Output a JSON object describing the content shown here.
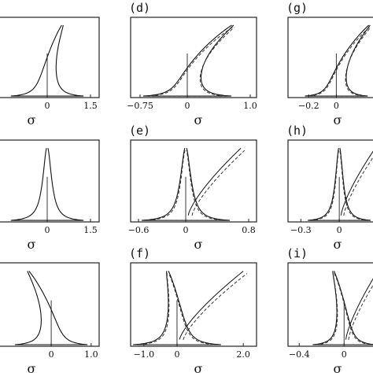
{
  "chart_data": [
    {
      "id": "a",
      "label": "",
      "type": "line",
      "xlabel": "σ",
      "xticks": [
        {
          "value": 0,
          "text": "0"
        },
        {
          "value": 1.5,
          "text": "1.5"
        }
      ],
      "xlim": [
        -1.8,
        1.8
      ],
      "ylim": [
        0,
        1
      ],
      "shape": {
        "peak_x": 0.55,
        "lean": 0.55,
        "base": 0.0,
        "dashed": false
      }
    },
    {
      "id": "b",
      "label": "",
      "type": "line",
      "xlabel": "σ",
      "xticks": [
        {
          "value": 0,
          "text": "0"
        },
        {
          "value": 1.5,
          "text": "1.5"
        }
      ],
      "xlim": [
        -1.8,
        1.8
      ],
      "ylim": [
        0,
        1
      ],
      "shape": {
        "peak_x": 0.0,
        "lean": 0.0,
        "base": 0.0,
        "dashed": false
      }
    },
    {
      "id": "c",
      "label": "",
      "type": "line",
      "xlabel": "σ",
      "xticks": [
        {
          "value": 0,
          "text": "0"
        },
        {
          "value": 1.0,
          "text": "1.0"
        }
      ],
      "xlim": [
        -1.4,
        1.2
      ],
      "ylim": [
        0,
        1
      ],
      "shape": {
        "peak_x": -0.7,
        "lean": -0.6,
        "base": 0.0,
        "dashed": false
      }
    },
    {
      "id": "d",
      "label": "(d)",
      "type": "line",
      "xlabel": "σ",
      "xticks": [
        {
          "value": -0.75,
          "text": "−0.75"
        },
        {
          "value": 0,
          "text": "0"
        },
        {
          "value": 1.0,
          "text": "1.0"
        }
      ],
      "xlim": [
        -0.9,
        1.1
      ],
      "ylim": [
        0,
        1
      ],
      "shape": {
        "peak_x": 0.75,
        "lean": 0.75,
        "base": 0.0,
        "dashed": true
      }
    },
    {
      "id": "e",
      "label": "(e)",
      "type": "line",
      "xlabel": "σ",
      "xticks": [
        {
          "value": -0.6,
          "text": "−0.6"
        },
        {
          "value": 0,
          "text": "0"
        },
        {
          "value": 0.8,
          "text": "0.8"
        }
      ],
      "xlim": [
        -0.7,
        0.9
      ],
      "ylim": [
        0,
        1
      ],
      "shape": {
        "peak_x": 0.0,
        "lean": 0.0,
        "base": 0.0,
        "dashed": true,
        "branch": 0.7
      }
    },
    {
      "id": "f",
      "label": "(f)",
      "type": "line",
      "xlabel": "σ",
      "xticks": [
        {
          "value": -1.0,
          "text": "−1.0"
        },
        {
          "value": 0,
          "text": "0"
        },
        {
          "value": 2.0,
          "text": "2.0"
        }
      ],
      "xlim": [
        -1.4,
        2.4
      ],
      "ylim": [
        0,
        1
      ],
      "shape": {
        "peak_x": -0.3,
        "lean": -0.3,
        "base": 0.0,
        "dashed": true,
        "branch": 2.0
      }
    },
    {
      "id": "g",
      "label": "(g)",
      "type": "line",
      "xlabel": "σ",
      "xticks": [
        {
          "value": -0.2,
          "text": "−0.2"
        },
        {
          "value": 0,
          "text": "0"
        }
      ],
      "xlim": [
        -0.35,
        0.3
      ],
      "ylim": [
        0,
        1
      ],
      "shape": {
        "peak_x": 0.25,
        "lean": 0.25,
        "base": 0.0,
        "dashed": true
      }
    },
    {
      "id": "h",
      "label": "(h)",
      "type": "line",
      "xlabel": "σ",
      "xticks": [
        {
          "value": -0.3,
          "text": "−0.3"
        },
        {
          "value": 0,
          "text": "0"
        }
      ],
      "xlim": [
        -0.4,
        0.3
      ],
      "ylim": [
        0,
        1
      ],
      "shape": {
        "peak_x": 0.0,
        "lean": 0.0,
        "base": 0.0,
        "dashed": true,
        "branch": 0.28
      }
    },
    {
      "id": "i",
      "label": "(i)",
      "type": "line",
      "xlabel": "σ",
      "xticks": [
        {
          "value": -0.4,
          "text": "−0.4"
        },
        {
          "value": 0,
          "text": "0"
        }
      ],
      "xlim": [
        -0.5,
        0.3
      ],
      "ylim": [
        0,
        1
      ],
      "shape": {
        "peak_x": -0.1,
        "lean": -0.1,
        "base": 0.0,
        "dashed": true,
        "branch": 0.3
      }
    }
  ]
}
